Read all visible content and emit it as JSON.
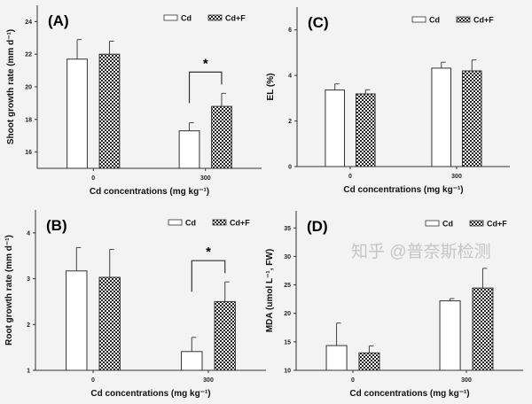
{
  "chart_data": [
    {
      "type": "bar",
      "panel_label": "(A)",
      "categories": [
        "0",
        "300"
      ],
      "xlabel": "Cd concentrations (mg kg⁻¹)",
      "ylabel": "Shoot growth rate (mm d⁻¹)",
      "ylim": [
        15,
        25
      ],
      "yticks": [
        16,
        18,
        20,
        22,
        24
      ],
      "series": [
        {
          "name": "Cd",
          "values": [
            21.7,
            17.3
          ],
          "errors": [
            1.2,
            0.5
          ]
        },
        {
          "name": "Cd+F",
          "values": [
            22.0,
            18.8
          ],
          "errors": [
            0.8,
            0.8
          ]
        }
      ],
      "significance": {
        "category": "300",
        "label": "*"
      },
      "legend": "top-right",
      "grid": false
    },
    {
      "type": "bar",
      "panel_label": "(C)",
      "categories": [
        "0",
        "300"
      ],
      "xlabel": "Cd concentrations (mg kg⁻¹)",
      "ylabel": "EL (%)",
      "ylim": [
        0,
        7
      ],
      "yticks": [
        0,
        2,
        4,
        6
      ],
      "series": [
        {
          "name": "Cd",
          "values": [
            3.36,
            4.32
          ],
          "errors": [
            0.27,
            0.26
          ]
        },
        {
          "name": "Cd+F",
          "values": [
            3.19,
            4.2
          ],
          "errors": [
            0.18,
            0.48
          ]
        }
      ],
      "legend": "top-right",
      "grid": false
    },
    {
      "type": "bar",
      "panel_label": "(B)",
      "categories": [
        "0",
        "300"
      ],
      "xlabel": "Cd concentrations (mg kg⁻¹)",
      "ylabel": "Root growth rate (mm d⁻¹)",
      "ylim": [
        1,
        4.5
      ],
      "yticks": [
        1,
        2,
        3,
        4
      ],
      "series": [
        {
          "name": "Cd",
          "values": [
            3.17,
            1.41
          ],
          "errors": [
            0.51,
            0.31
          ]
        },
        {
          "name": "Cd+F",
          "values": [
            3.03,
            2.5
          ],
          "errors": [
            0.61,
            0.43
          ]
        }
      ],
      "significance": {
        "category": "300",
        "label": "*"
      },
      "legend": "top-right",
      "grid": false
    },
    {
      "type": "bar",
      "panel_label": "(D)",
      "categories": [
        "0",
        "300"
      ],
      "xlabel": "Cd concentrations (mg kg⁻¹)",
      "ylabel": "MDA (umol L⁻¹, FW)",
      "ylim": [
        10,
        38
      ],
      "yticks": [
        10,
        15,
        20,
        25,
        30,
        35
      ],
      "series": [
        {
          "name": "Cd",
          "values": [
            14.35,
            22.2
          ],
          "errors": [
            3.95,
            0.4
          ]
        },
        {
          "name": "Cd+F",
          "values": [
            13.06,
            24.45
          ],
          "errors": [
            1.24,
            3.45
          ]
        }
      ],
      "legend": "top-right",
      "grid": false
    }
  ],
  "watermark": "知乎 @普奈斯检测"
}
